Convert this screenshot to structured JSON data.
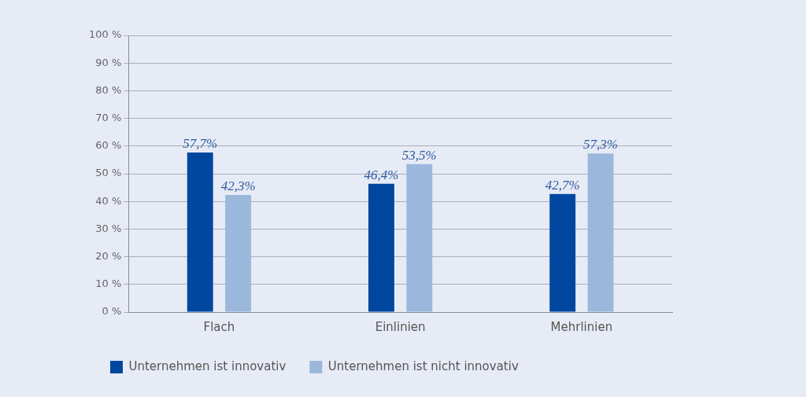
{
  "chart_data": {
    "type": "bar",
    "categories": [
      "Flach",
      "Einlinien",
      "Mehrlinien"
    ],
    "series": [
      {
        "name": "Unternehmen ist innovativ",
        "color": "#0047a0",
        "values": [
          57.7,
          46.4,
          42.7
        ],
        "value_labels": [
          "57,7%",
          "46,4%",
          "42,7%"
        ]
      },
      {
        "name": "Unternehmen ist nicht innovativ",
        "color": "#9bb8dc",
        "values": [
          42.3,
          53.5,
          57.3
        ],
        "value_labels": [
          "42,3%",
          "53,5%",
          "57,3%"
        ]
      }
    ],
    "ylim": [
      0,
      100
    ],
    "yticks": [
      {
        "value": 0,
        "label": "0 %"
      },
      {
        "value": 10,
        "label": "10 %"
      },
      {
        "value": 20,
        "label": "20 %"
      },
      {
        "value": 30,
        "label": "30 %"
      },
      {
        "value": 40,
        "label": "40 %"
      },
      {
        "value": 50,
        "label": "50 %"
      },
      {
        "value": 60,
        "label": "60 %"
      },
      {
        "value": 70,
        "label": "70 %"
      },
      {
        "value": 80,
        "label": "80 %"
      },
      {
        "value": 90,
        "label": "90 %"
      },
      {
        "value": 100,
        "label": "100 %"
      }
    ],
    "grid": true,
    "legend": "bottom",
    "data_labels": true
  }
}
